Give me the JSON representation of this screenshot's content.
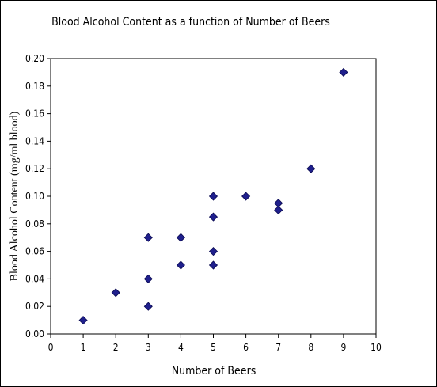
{
  "chart_data": {
    "type": "scatter",
    "title": "Blood Alcohol Content as a function of Number of Beers",
    "xlabel": "Number of Beers",
    "ylabel": "Blood Alcohol Content (mg/ml blood)",
    "xlim": [
      0,
      10
    ],
    "ylim": [
      0,
      0.2
    ],
    "x_ticks": [
      "0",
      "1",
      "2",
      "3",
      "4",
      "5",
      "6",
      "7",
      "8",
      "9",
      "10"
    ],
    "y_ticks": [
      "0.00",
      "0.02",
      "0.04",
      "0.06",
      "0.08",
      "0.10",
      "0.12",
      "0.14",
      "0.16",
      "0.18",
      "0.20"
    ],
    "grid": false,
    "legend": "none",
    "marker": "diamond",
    "marker_color": "#1f1f8c",
    "points": [
      {
        "x": 1,
        "y": 0.01
      },
      {
        "x": 2,
        "y": 0.03
      },
      {
        "x": 3,
        "y": 0.02
      },
      {
        "x": 3,
        "y": 0.04
      },
      {
        "x": 3,
        "y": 0.07
      },
      {
        "x": 4,
        "y": 0.05
      },
      {
        "x": 4,
        "y": 0.07
      },
      {
        "x": 5,
        "y": 0.05
      },
      {
        "x": 5,
        "y": 0.06
      },
      {
        "x": 5,
        "y": 0.085
      },
      {
        "x": 5,
        "y": 0.1
      },
      {
        "x": 6,
        "y": 0.1
      },
      {
        "x": 7,
        "y": 0.09
      },
      {
        "x": 7,
        "y": 0.095
      },
      {
        "x": 8,
        "y": 0.12
      },
      {
        "x": 9,
        "y": 0.19
      }
    ]
  }
}
